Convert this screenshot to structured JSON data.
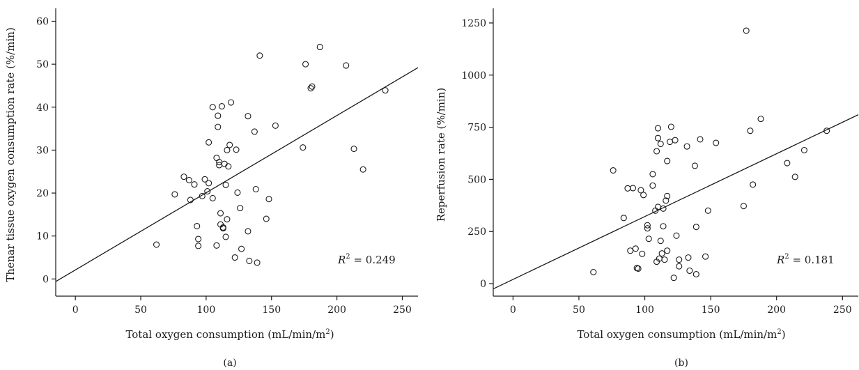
{
  "chart_data": [
    {
      "type": "scatter",
      "panel_label": "(a)",
      "xlabel": "Total oxygen consumption (mL/min/m",
      "xlabel_sup": "2",
      "xlabel_end": ")",
      "ylabel": "Thenar tissue oxygen consumption rate (%/min)",
      "xlim": [
        -15,
        262
      ],
      "ylim": [
        -4,
        63
      ],
      "xticks": [
        0,
        50,
        100,
        150,
        200,
        250
      ],
      "yticks": [
        0,
        10,
        20,
        30,
        40,
        50,
        60
      ],
      "annotation": {
        "prefix": "R",
        "sup": "2",
        "value": " = 0.249"
      },
      "fit_line": {
        "x": [
          -15,
          262
        ],
        "y": [
          -0.6,
          49.2
        ]
      },
      "points": [
        [
          62,
          8
        ],
        [
          76,
          19.7
        ],
        [
          83,
          23.8
        ],
        [
          87,
          23
        ],
        [
          88,
          18.4
        ],
        [
          91,
          22
        ],
        [
          93,
          12.3
        ],
        [
          94,
          9.3
        ],
        [
          94,
          7.7
        ],
        [
          97,
          19.3
        ],
        [
          99,
          23.2
        ],
        [
          101,
          20.4
        ],
        [
          102,
          31.8
        ],
        [
          102,
          22.3
        ],
        [
          105,
          40
        ],
        [
          105,
          18.8
        ],
        [
          108,
          28.2
        ],
        [
          108,
          7.8
        ],
        [
          109,
          38
        ],
        [
          109,
          35.4
        ],
        [
          110,
          27.2
        ],
        [
          110,
          26.5
        ],
        [
          111,
          15.3
        ],
        [
          111,
          12.7
        ],
        [
          112,
          40.2
        ],
        [
          113,
          12
        ],
        [
          113,
          11.8
        ],
        [
          114,
          26.8
        ],
        [
          115,
          21.9
        ],
        [
          115,
          9.8
        ],
        [
          116,
          30
        ],
        [
          116,
          13.9
        ],
        [
          117,
          26.2
        ],
        [
          118,
          31.2
        ],
        [
          119,
          41.1
        ],
        [
          122,
          5
        ],
        [
          123,
          30.1
        ],
        [
          124,
          20.1
        ],
        [
          126,
          16.5
        ],
        [
          127,
          7
        ],
        [
          132,
          11.1
        ],
        [
          132,
          37.9
        ],
        [
          133,
          4.2
        ],
        [
          137,
          34.3
        ],
        [
          138,
          20.9
        ],
        [
          139,
          3.8
        ],
        [
          141,
          52
        ],
        [
          146,
          14
        ],
        [
          148,
          18.6
        ],
        [
          153,
          35.7
        ],
        [
          174,
          30.6
        ],
        [
          176,
          50
        ],
        [
          180,
          44.4
        ],
        [
          181,
          44.8
        ],
        [
          187,
          54
        ],
        [
          207,
          49.7
        ],
        [
          213,
          30.3
        ],
        [
          220,
          25.5
        ],
        [
          237,
          43.9
        ]
      ]
    },
    {
      "type": "scatter",
      "panel_label": "(b)",
      "xlabel": "Total oxygen consumption (mL/min/m",
      "xlabel_sup": "2",
      "xlabel_end": ")",
      "ylabel": "Reperfusion rate (%/min)",
      "xlim": [
        -15,
        262
      ],
      "ylim": [
        -60,
        1320
      ],
      "xticks": [
        0,
        50,
        100,
        150,
        200,
        250
      ],
      "yticks": [
        0,
        250,
        500,
        750,
        1000,
        1250
      ],
      "annotation": {
        "prefix": "R",
        "sup": "2",
        "value": " = 0.181"
      },
      "fit_line": {
        "x": [
          -15,
          262
        ],
        "y": [
          -25,
          810
        ]
      },
      "points": [
        [
          61,
          55
        ],
        [
          76,
          543
        ],
        [
          84,
          315
        ],
        [
          87,
          457
        ],
        [
          89,
          158
        ],
        [
          91,
          458
        ],
        [
          93,
          168
        ],
        [
          94,
          75
        ],
        [
          95,
          72
        ],
        [
          97,
          448
        ],
        [
          98,
          143
        ],
        [
          99,
          425
        ],
        [
          102,
          265
        ],
        [
          102,
          280
        ],
        [
          103,
          215
        ],
        [
          106,
          470
        ],
        [
          106,
          525
        ],
        [
          108,
          350
        ],
        [
          109,
          105
        ],
        [
          109,
          635
        ],
        [
          110,
          698
        ],
        [
          110,
          368
        ],
        [
          110,
          745
        ],
        [
          111,
          120
        ],
        [
          112,
          205
        ],
        [
          112,
          670
        ],
        [
          113,
          145
        ],
        [
          114,
          360
        ],
        [
          114,
          275
        ],
        [
          115,
          115
        ],
        [
          116,
          398
        ],
        [
          117,
          420
        ],
        [
          117,
          588
        ],
        [
          117,
          158
        ],
        [
          119,
          680
        ],
        [
          120,
          752
        ],
        [
          122,
          28
        ],
        [
          123,
          688
        ],
        [
          124,
          230
        ],
        [
          126,
          115
        ],
        [
          126,
          83
        ],
        [
          132,
          658
        ],
        [
          133,
          125
        ],
        [
          134,
          62
        ],
        [
          138,
          565
        ],
        [
          139,
          272
        ],
        [
          139,
          45
        ],
        [
          142,
          692
        ],
        [
          146,
          130
        ],
        [
          148,
          350
        ],
        [
          154,
          675
        ],
        [
          175,
          372
        ],
        [
          177,
          1213
        ],
        [
          180,
          733
        ],
        [
          182,
          475
        ],
        [
          188,
          790
        ],
        [
          208,
          578
        ],
        [
          214,
          512
        ],
        [
          221,
          640
        ],
        [
          238,
          733
        ]
      ]
    }
  ]
}
